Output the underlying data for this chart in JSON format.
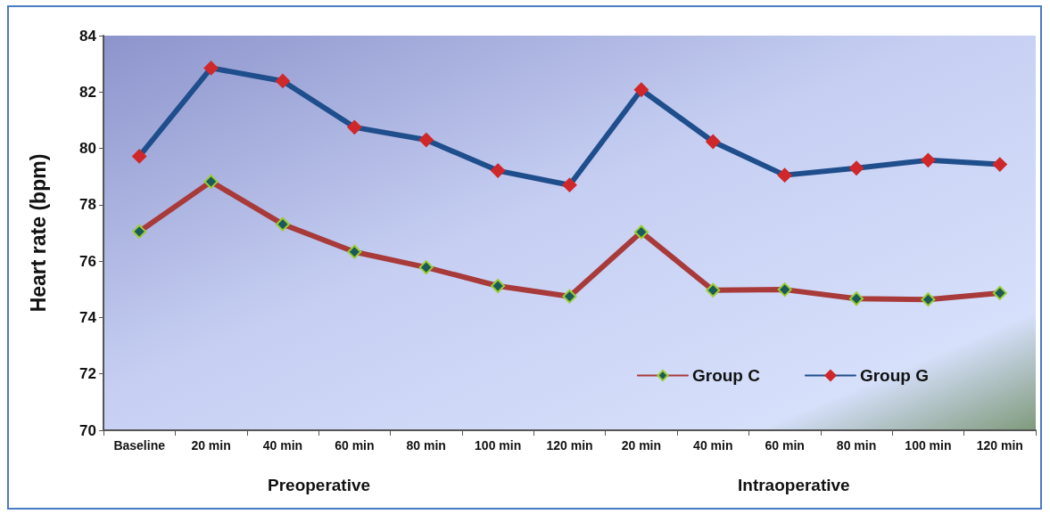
{
  "chart_data": {
    "type": "line",
    "ylabel": "Heart rate (bpm)",
    "categories": [
      "Baseline",
      "20 min",
      "40 min",
      "60 min",
      "80 min",
      "100 min",
      "120 min",
      "20 min",
      "40 min",
      "60 min",
      "80 min",
      "100 min",
      "120 min"
    ],
    "series": [
      {
        "name": "Group C",
        "color": "#a83a3a",
        "values": [
          77.05,
          78.82,
          77.31,
          76.33,
          75.78,
          75.12,
          74.75,
          77.03,
          74.97,
          74.99,
          74.67,
          74.64,
          74.87
        ]
      },
      {
        "name": "Group G",
        "color": "#1f4e8c",
        "values": [
          79.72,
          82.85,
          82.39,
          80.75,
          80.3,
          79.21,
          78.7,
          82.08,
          80.24,
          79.05,
          79.3,
          79.58,
          79.43
        ]
      }
    ],
    "ylim": [
      70,
      84
    ],
    "yticks": [
      70,
      72,
      74,
      76,
      78,
      80,
      82,
      84
    ],
    "annotations": [
      "Preoperative",
      "Intraoperative"
    ],
    "marker": "diamond",
    "line_style": "solid",
    "grid": false,
    "legend": "bottom right"
  }
}
